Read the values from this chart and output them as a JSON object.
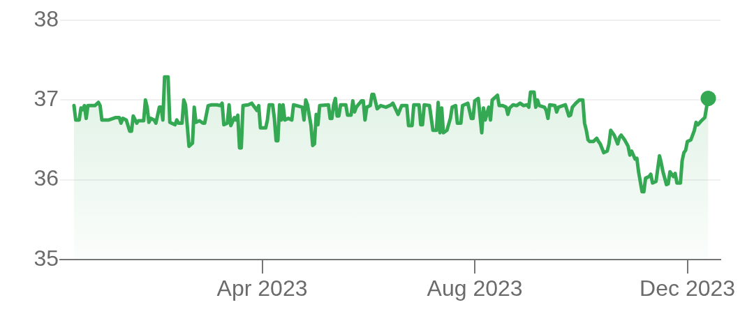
{
  "chart_data": {
    "type": "area",
    "legend": false,
    "grid": "y",
    "xlim": [
      "2022-12-06",
      "2023-12-20"
    ],
    "xticks": [
      {
        "value": "2023-04-01",
        "label": "Apr 2023"
      },
      {
        "value": "2023-08-01",
        "label": "Aug 2023"
      },
      {
        "value": "2023-12-01",
        "label": "Dec 2023"
      }
    ],
    "ylim": [
      35,
      38
    ],
    "yticks": [
      35,
      36,
      37,
      38
    ],
    "series": [
      {
        "color": "#34a853",
        "marker": "none",
        "x": [
          "2022-12-14",
          "2022-12-15",
          "2022-12-17",
          "2022-12-18",
          "2022-12-19",
          "2022-12-20",
          "2022-12-21",
          "2022-12-22",
          "2022-12-26",
          "2022-12-28",
          "2022-12-29",
          "2022-12-30",
          "2023-01-03",
          "2023-01-07",
          "2023-01-09",
          "2023-01-10",
          "2023-01-11",
          "2023-01-13",
          "2023-01-15",
          "2023-01-16",
          "2023-01-17",
          "2023-01-19",
          "2023-01-20",
          "2023-01-23",
          "2023-01-24",
          "2023-01-25",
          "2023-01-26",
          "2023-01-27",
          "2023-01-29",
          "2023-01-30",
          "2023-02-01",
          "2023-02-02",
          "2023-02-03",
          "2023-02-04",
          "2023-02-06",
          "2023-02-07",
          "2023-02-08",
          "2023-02-10",
          "2023-02-11",
          "2023-02-12",
          "2023-02-14",
          "2023-02-15",
          "2023-02-16",
          "2023-02-18",
          "2023-02-20",
          "2023-02-21",
          "2023-02-22",
          "2023-02-24",
          "2023-02-26",
          "2023-02-27",
          "2023-03-01",
          "2023-03-03",
          "2023-03-06",
          "2023-03-08",
          "2023-03-09",
          "2023-03-10",
          "2023-03-12",
          "2023-03-13",
          "2023-03-14",
          "2023-03-16",
          "2023-03-17",
          "2023-03-18",
          "2023-03-19",
          "2023-03-20",
          "2023-03-21",
          "2023-03-24",
          "2023-03-26",
          "2023-03-29",
          "2023-03-30",
          "2023-03-31",
          "2023-04-03",
          "2023-04-04",
          "2023-04-05",
          "2023-04-07",
          "2023-04-08",
          "2023-04-09",
          "2023-04-10",
          "2023-04-11",
          "2023-04-12",
          "2023-04-13",
          "2023-04-14",
          "2023-04-16",
          "2023-04-18",
          "2023-04-19",
          "2023-04-24",
          "2023-04-25",
          "2023-04-26",
          "2023-04-27",
          "2023-04-29",
          "2023-04-30",
          "2023-05-01",
          "2023-05-02",
          "2023-05-03",
          "2023-05-04",
          "2023-05-09",
          "2023-05-10",
          "2023-05-11",
          "2023-05-12",
          "2023-05-13",
          "2023-05-14",
          "2023-05-15",
          "2023-05-16",
          "2023-05-19",
          "2023-05-20",
          "2023-05-22",
          "2023-05-23",
          "2023-05-24",
          "2023-05-25",
          "2023-05-28",
          "2023-05-29",
          "2023-05-30",
          "2023-05-31",
          "2023-06-02",
          "2023-06-03",
          "2023-06-04",
          "2023-06-06",
          "2023-06-08",
          "2023-06-11",
          "2023-06-14",
          "2023-06-15",
          "2023-06-18",
          "2023-06-20",
          "2023-06-23",
          "2023-06-24",
          "2023-06-26",
          "2023-06-27",
          "2023-06-30",
          "2023-07-01",
          "2023-07-02",
          "2023-07-03",
          "2023-07-06",
          "2023-07-08",
          "2023-07-10",
          "2023-07-11",
          "2023-07-12",
          "2023-07-13",
          "2023-07-14",
          "2023-07-16",
          "2023-07-18",
          "2023-07-19",
          "2023-07-21",
          "2023-07-22",
          "2023-07-24",
          "2023-07-25",
          "2023-07-28",
          "2023-07-30",
          "2023-07-31",
          "2023-08-01",
          "2023-08-03",
          "2023-08-05",
          "2023-08-06",
          "2023-08-07",
          "2023-08-09",
          "2023-08-10",
          "2023-08-11",
          "2023-08-14",
          "2023-08-15",
          "2023-08-17",
          "2023-08-19",
          "2023-08-20",
          "2023-08-21",
          "2023-08-23",
          "2023-08-25",
          "2023-08-27",
          "2023-08-29",
          "2023-08-31",
          "2023-09-01",
          "2023-09-02",
          "2023-09-04",
          "2023-09-05",
          "2023-09-06",
          "2023-09-07",
          "2023-09-10",
          "2023-09-11",
          "2023-09-12",
          "2023-09-13",
          "2023-09-16",
          "2023-09-17",
          "2023-09-18",
          "2023-09-22",
          "2023-09-24",
          "2023-09-25",
          "2023-09-26",
          "2023-09-28",
          "2023-09-30",
          "2023-10-02",
          "2023-10-03",
          "2023-10-04",
          "2023-10-05",
          "2023-10-06",
          "2023-10-08",
          "2023-10-10",
          "2023-10-11",
          "2023-10-12",
          "2023-10-14",
          "2023-10-16",
          "2023-10-17",
          "2023-10-18",
          "2023-10-20",
          "2023-10-22",
          "2023-10-23",
          "2023-10-24",
          "2023-10-26",
          "2023-10-28",
          "2023-10-29",
          "2023-10-30",
          "2023-11-01",
          "2023-11-02",
          "2023-11-03",
          "2023-11-05",
          "2023-11-06",
          "2023-11-07",
          "2023-11-09",
          "2023-11-10",
          "2023-11-11",
          "2023-11-13",
          "2023-11-15",
          "2023-11-16",
          "2023-11-17",
          "2023-11-19",
          "2023-11-20",
          "2023-11-21",
          "2023-11-23",
          "2023-11-24",
          "2023-11-25",
          "2023-11-27",
          "2023-11-28",
          "2023-11-29",
          "2023-11-30",
          "2023-12-01",
          "2023-12-03",
          "2023-12-05",
          "2023-12-06",
          "2023-12-07",
          "2023-12-09",
          "2023-12-11",
          "2023-12-12",
          "2023-12-13"
        ],
        "values": [
          36.93,
          36.75,
          36.75,
          36.9,
          36.88,
          36.93,
          36.77,
          36.93,
          36.93,
          36.97,
          36.93,
          36.75,
          36.75,
          36.78,
          36.78,
          36.71,
          36.77,
          36.75,
          36.61,
          36.61,
          36.8,
          36.71,
          36.74,
          36.74,
          37.0,
          36.91,
          36.72,
          36.77,
          36.75,
          36.71,
          36.91,
          36.91,
          36.75,
          37.29,
          37.29,
          36.72,
          36.71,
          36.69,
          36.75,
          36.71,
          36.71,
          37.0,
          36.94,
          36.42,
          36.46,
          36.91,
          36.72,
          36.74,
          36.71,
          36.71,
          36.93,
          36.94,
          36.94,
          36.93,
          36.96,
          36.69,
          36.71,
          36.94,
          36.68,
          36.78,
          36.75,
          36.81,
          36.4,
          36.4,
          36.93,
          36.94,
          36.96,
          36.87,
          36.93,
          36.65,
          36.65,
          36.75,
          36.94,
          36.94,
          36.77,
          36.49,
          36.49,
          36.94,
          36.75,
          36.94,
          36.75,
          36.77,
          36.75,
          36.94,
          36.91,
          36.75,
          37.0,
          36.94,
          36.68,
          36.43,
          36.45,
          36.82,
          36.69,
          36.93,
          36.94,
          36.77,
          36.77,
          36.94,
          37.02,
          36.8,
          36.8,
          36.94,
          36.94,
          36.81,
          36.81,
          36.99,
          36.85,
          36.91,
          36.99,
          36.99,
          36.75,
          36.91,
          36.93,
          37.07,
          37.07,
          36.89,
          36.93,
          36.91,
          36.94,
          36.96,
          36.82,
          36.93,
          36.93,
          36.68,
          36.68,
          36.94,
          36.94,
          36.69,
          36.69,
          36.94,
          36.93,
          36.62,
          36.62,
          36.97,
          36.59,
          36.9,
          36.59,
          36.62,
          36.77,
          36.91,
          36.93,
          36.71,
          36.71,
          36.93,
          36.96,
          36.77,
          36.77,
          36.99,
          37.02,
          36.59,
          36.9,
          36.75,
          36.91,
          36.75,
          37.0,
          37.06,
          36.93,
          36.93,
          36.91,
          36.82,
          36.9,
          36.94,
          36.93,
          36.96,
          36.93,
          36.94,
          36.91,
          37.1,
          37.1,
          36.91,
          37.0,
          36.93,
          36.91,
          36.87,
          36.77,
          36.94,
          36.93,
          36.85,
          36.91,
          36.94,
          36.8,
          36.81,
          36.91,
          36.96,
          37.0,
          37.0,
          36.71,
          36.62,
          36.5,
          36.48,
          36.48,
          36.52,
          36.48,
          36.45,
          36.34,
          36.36,
          36.45,
          36.62,
          36.56,
          36.45,
          36.53,
          36.56,
          36.5,
          36.42,
          36.31,
          36.36,
          36.26,
          36.27,
          36.1,
          35.85,
          35.85,
          36.02,
          36.04,
          36.07,
          35.96,
          35.98,
          36.3,
          36.21,
          36.1,
          35.94,
          35.95,
          36.1,
          36.04,
          36.08,
          35.96,
          35.96,
          36.24,
          36.34,
          36.37,
          36.48,
          36.5,
          36.62,
          36.72,
          36.69,
          36.74,
          36.78,
          36.91,
          37.02
        ]
      },
      {
        "type": "scatter",
        "color": "#34a853",
        "marker": "circle",
        "x": [
          "2023-12-13"
        ],
        "values": [
          37.02
        ]
      }
    ]
  }
}
